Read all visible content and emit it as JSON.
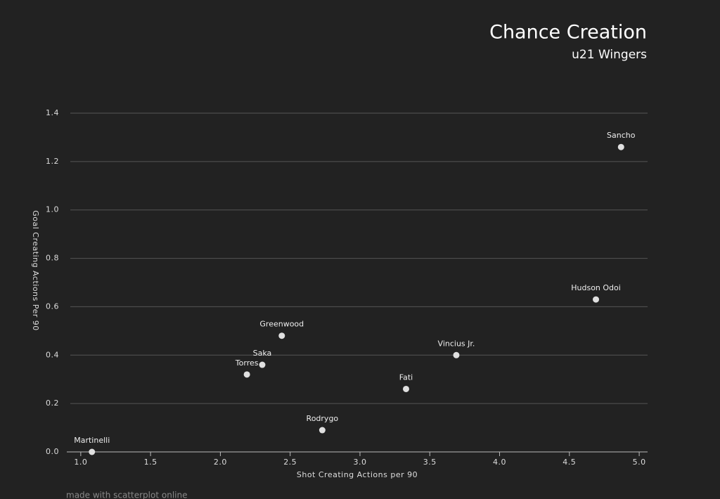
{
  "chart_data": {
    "type": "scatter",
    "title": "Chance Creation",
    "subtitle": "u21 Wingers",
    "xlabel": "Shot Creating Actions per 90",
    "ylabel": "Goal Creating Actions Per 90",
    "footer": "made with scatterplot online",
    "series": [
      {
        "color": "#e0e0e0",
        "labels": [
          "Sancho",
          "Hudson Odoi",
          "Vincius Jr.",
          "Fati",
          "Rodrygo",
          "Greenwood",
          "Saka",
          "Torres",
          "Martinelli"
        ],
        "x": [
          4.87,
          4.69,
          3.69,
          3.33,
          2.73,
          2.44,
          2.3,
          2.19,
          1.08
        ],
        "values": [
          1.26,
          0.63,
          0.4,
          0.26,
          0.09,
          0.48,
          0.36,
          0.32,
          0
        ]
      }
    ],
    "xlim": [
      0.9,
      5.06
    ],
    "ylim": [
      0,
      1.4
    ],
    "xticks": [
      {
        "value": 1,
        "label": "1.0"
      },
      1.5,
      {
        "value": 2,
        "label": "2.0"
      },
      2.5,
      {
        "value": 3,
        "label": "3.0"
      },
      3.5,
      {
        "value": 4,
        "label": "4.0"
      },
      4.5,
      {
        "value": 5,
        "label": "5.0"
      }
    ],
    "yticks": [
      {
        "value": 0,
        "label": "0.0"
      },
      0.2,
      0.4,
      0.6,
      0.8,
      {
        "value": 1,
        "label": "1.0"
      },
      1.2,
      1.4
    ],
    "grid": true
  }
}
